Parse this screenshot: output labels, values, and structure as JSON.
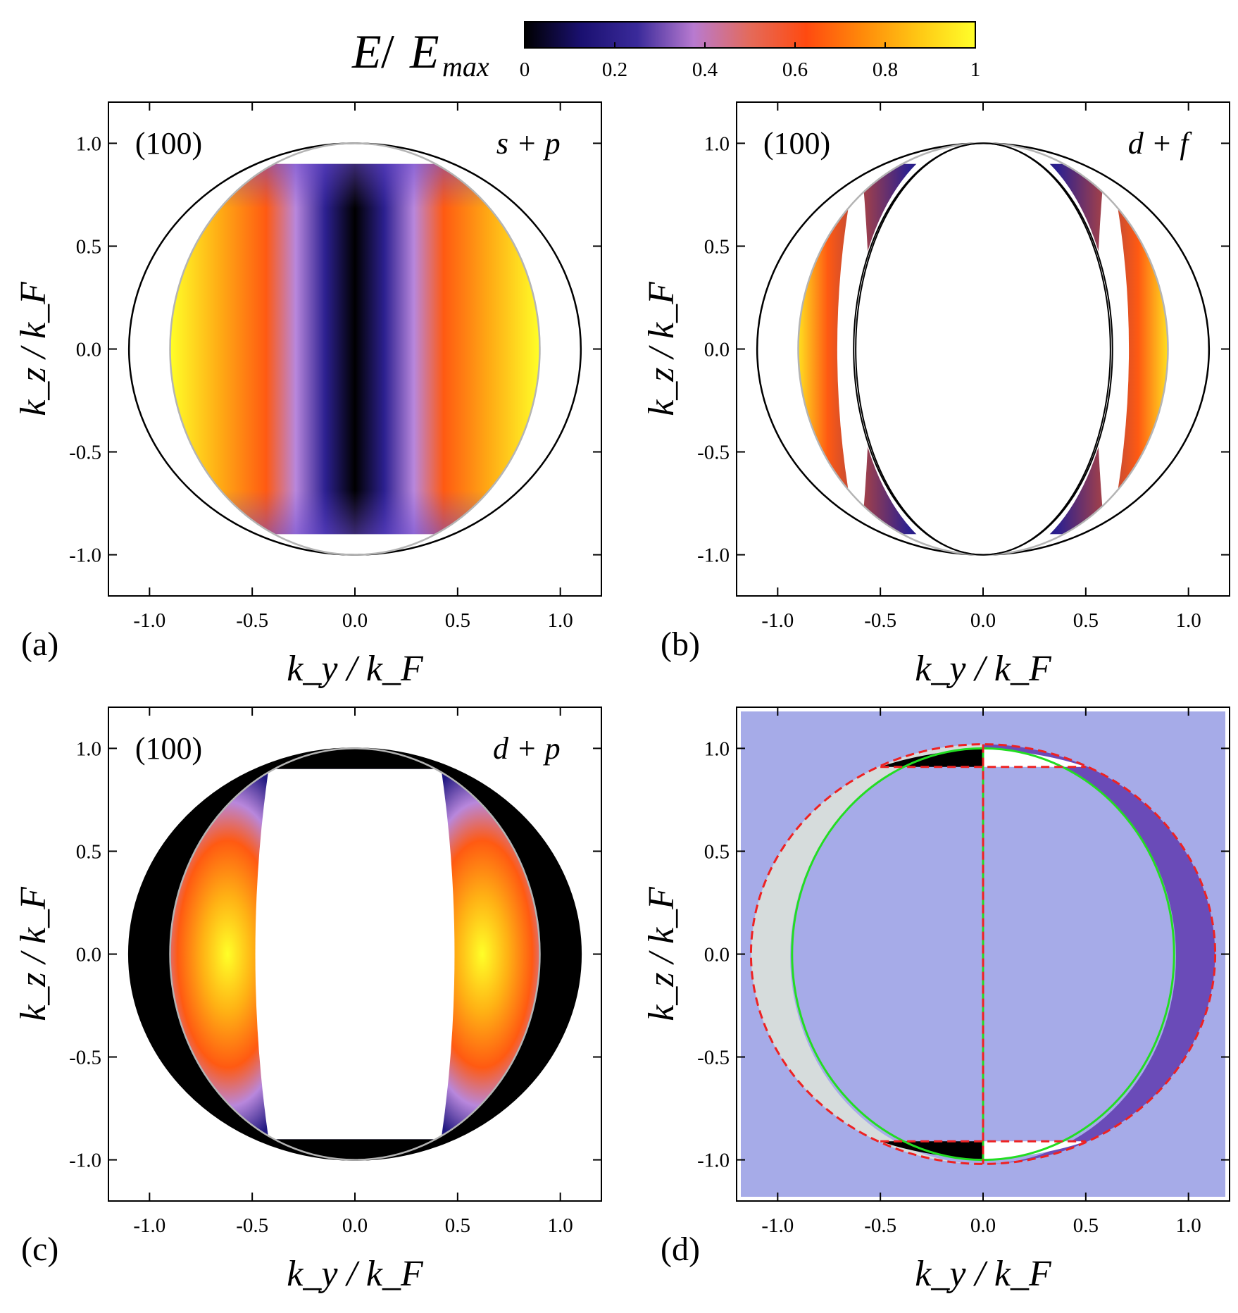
{
  "colorbar": {
    "label_main": "E",
    "label_sep": " /",
    "label_denom": "E",
    "label_denom_sub": "max",
    "ticks": [
      "0",
      "0.2",
      "0.4",
      "0.6",
      "0.8",
      "1"
    ],
    "tick_values": [
      0,
      0.2,
      0.4,
      0.6,
      0.8,
      1
    ],
    "colors": [
      "#000000",
      "#1a1070",
      "#3a2a9a",
      "#b87ad0",
      "#e46a5a",
      "#ff4a10",
      "#ff8a0a",
      "#ffc814",
      "#ffff2a"
    ]
  },
  "chart_data": [
    {
      "id": "a",
      "type": "heatmap",
      "panel_label": "(a)",
      "face": "(100)",
      "pairing": "s + p",
      "xlabel": "k_y / k_F",
      "ylabel": "k_z / k_F",
      "xlim": [
        -1.2,
        1.2
      ],
      "ylim": [
        -1.2,
        1.2
      ],
      "xticks": [
        "-1.0",
        "-0.5",
        "0.0",
        "0.5",
        "1.0"
      ],
      "yticks": [
        "1.0",
        "0.5",
        "0.0",
        "-0.5",
        "-1.0"
      ],
      "xtick_values": [
        -1.0,
        -0.5,
        0.0,
        0.5,
        1.0
      ],
      "ytick_values": [
        1.0,
        0.5,
        0.0,
        -0.5,
        -1.0
      ],
      "colorscale": "E/Emax 0 to 1",
      "outer_ellipse_semiaxes": [
        1.1,
        1.0
      ],
      "inner_ellipse_semiaxes": [
        0.9,
        1.0
      ],
      "map_kz_range": [
        -0.9,
        0.9
      ]
    },
    {
      "id": "b",
      "type": "heatmap",
      "panel_label": "(b)",
      "face": "(100)",
      "pairing": "d + f",
      "xlabel": "k_y / k_F",
      "ylabel": "k_z / k_F",
      "xlim": [
        -1.2,
        1.2
      ],
      "ylim": [
        -1.2,
        1.2
      ],
      "xticks": [
        "-1.0",
        "-0.5",
        "0.0",
        "0.5",
        "1.0"
      ],
      "yticks": [
        "1.0",
        "0.5",
        "0.0",
        "-0.5",
        "-1.0"
      ],
      "xtick_values": [
        -1.0,
        -0.5,
        0.0,
        0.5,
        1.0
      ],
      "ytick_values": [
        1.0,
        0.5,
        0.0,
        -0.5,
        -1.0
      ],
      "colorscale": "E/Emax 0 to 1",
      "outer_ellipse_semiaxes": [
        1.1,
        1.0
      ],
      "inner_ellipse_semiaxes": [
        0.9,
        1.0
      ],
      "map_kz_range": [
        -0.9,
        0.9
      ]
    },
    {
      "id": "c",
      "type": "heatmap",
      "panel_label": "(c)",
      "face": "(100)",
      "pairing": "d + p",
      "xlabel": "k_y / k_F",
      "ylabel": "k_z / k_F",
      "xlim": [
        -1.2,
        1.2
      ],
      "ylim": [
        -1.2,
        1.2
      ],
      "xticks": [
        "-1.0",
        "-0.5",
        "0.0",
        "0.5",
        "1.0"
      ],
      "yticks": [
        "1.0",
        "0.5",
        "0.0",
        "-0.5",
        "-1.0"
      ],
      "xtick_values": [
        -1.0,
        -0.5,
        0.0,
        0.5,
        1.0
      ],
      "ytick_values": [
        1.0,
        0.5,
        0.0,
        -0.5,
        -1.0
      ],
      "colorscale": "E/Emax 0 to 1",
      "outer_ellipse_semiaxes": [
        1.1,
        1.0
      ],
      "inner_ellipse_semiaxes": [
        0.9,
        1.0
      ],
      "map_kz_range": [
        -0.9,
        0.9
      ]
    },
    {
      "id": "d",
      "type": "heatmap",
      "panel_label": "(d)",
      "xlabel": "k_y / k_F",
      "ylabel": "k_z / k_F",
      "xlim": [
        -1.2,
        1.2
      ],
      "ylim": [
        -1.2,
        1.2
      ],
      "xticks": [
        "-1.0",
        "-0.5",
        "0.0",
        "0.5",
        "1.0"
      ],
      "yticks": [
        "1.0",
        "0.5",
        "0.0",
        "-0.5",
        "-1.0"
      ],
      "xtick_values": [
        -1.0,
        -0.5,
        0.0,
        0.5,
        1.0
      ],
      "ytick_values": [
        1.0,
        0.5,
        0.0,
        -0.5,
        -1.0
      ],
      "region_colors": {
        "background": "#a6abe8",
        "left_crescent": "#d6dcdc",
        "right_crescent": "#6a4bb8",
        "black_wedges": "#000000",
        "white_wedges": "#ffffff",
        "green_circle": "#22dd22",
        "red_dashed": "#ee2222"
      },
      "green_circle_semiaxes": [
        0.93,
        1.0
      ],
      "red_dashed_semiaxes": [
        1.13,
        1.02
      ],
      "wedge_kz": 0.91
    }
  ]
}
